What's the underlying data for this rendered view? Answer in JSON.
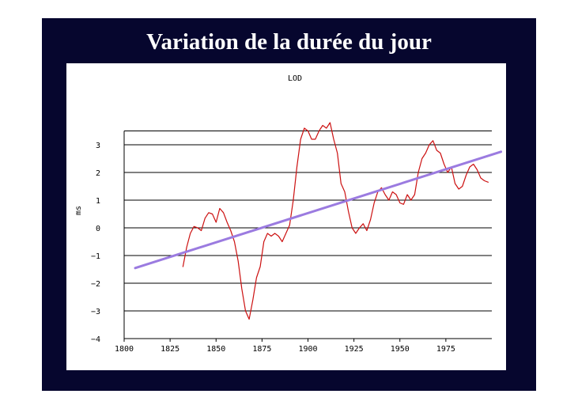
{
  "slide": {
    "title": "Variation de la durée du jour"
  },
  "chart_data": {
    "type": "line",
    "title": "LOD",
    "xlabel": "",
    "ylabel": "ms",
    "xlim": [
      1800,
      2000
    ],
    "ylim": [
      -4,
      3.5
    ],
    "x_ticks": [
      "1800",
      "1825",
      "1850",
      "1875",
      "1900",
      "1925",
      "1950",
      "1975"
    ],
    "y_ticks": [
      "3",
      "2",
      "1",
      "0",
      "-1",
      "-2",
      "-3",
      "-4"
    ],
    "grid": "horizontal",
    "series": [
      {
        "color": "#cc1111",
        "x": [
          1832,
          1834,
          1836,
          1838,
          1840,
          1842,
          1844,
          1846,
          1848,
          1850,
          1852,
          1854,
          1856,
          1858,
          1860,
          1862,
          1864,
          1866,
          1868,
          1870,
          1872,
          1874,
          1876,
          1878,
          1880,
          1882,
          1884,
          1886,
          1888,
          1890,
          1892,
          1894,
          1896,
          1898,
          1900,
          1902,
          1904,
          1906,
          1908,
          1910,
          1912,
          1914,
          1916,
          1918,
          1920,
          1922,
          1924,
          1926,
          1928,
          1930,
          1932,
          1934,
          1936,
          1938,
          1940,
          1942,
          1944,
          1946,
          1948,
          1950,
          1952,
          1954,
          1956,
          1958,
          1960,
          1962,
          1964,
          1966,
          1968,
          1970,
          1972,
          1974,
          1976,
          1978,
          1980,
          1982,
          1984,
          1986,
          1988,
          1990,
          1992,
          1994,
          1996,
          1998
        ],
        "values": [
          -1.4,
          -0.7,
          -0.2,
          0.05,
          0,
          -0.1,
          0.35,
          0.55,
          0.5,
          0.2,
          0.7,
          0.55,
          0.2,
          -0.1,
          -0.5,
          -1.2,
          -2.2,
          -3.0,
          -3.3,
          -2.6,
          -1.8,
          -1.4,
          -0.5,
          -0.2,
          -0.3,
          -0.2,
          -0.3,
          -0.5,
          -0.2,
          0.1,
          1.0,
          2.2,
          3.2,
          3.6,
          3.5,
          3.2,
          3.2,
          3.5,
          3.7,
          3.6,
          3.8,
          3.2,
          2.7,
          1.6,
          1.3,
          0.6,
          0.0,
          -0.2,
          0.0,
          0.15,
          -0.1,
          0.3,
          0.9,
          1.3,
          1.45,
          1.2,
          1.0,
          1.3,
          1.2,
          0.9,
          0.85,
          1.2,
          1.0,
          1.2,
          2.0,
          2.5,
          2.7,
          3.0,
          3.15,
          2.8,
          2.7,
          2.3,
          2.0,
          2.2,
          1.6,
          1.4,
          1.5,
          1.9,
          2.2,
          2.3,
          2.1,
          1.8,
          1.7,
          1.65
        ]
      },
      {
        "color": "#9b7be0",
        "x": [
          1806,
          2005
        ],
        "values": [
          -1.45,
          2.75
        ]
      }
    ]
  }
}
